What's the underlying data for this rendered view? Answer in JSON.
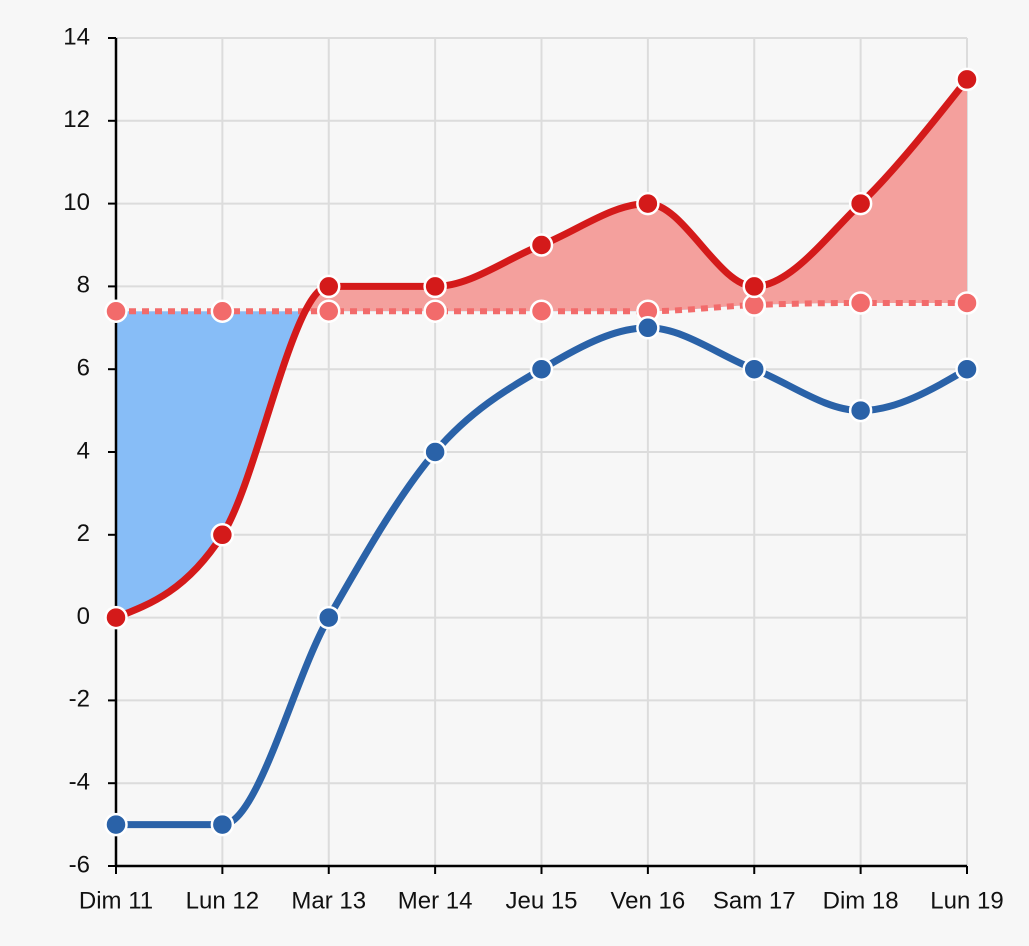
{
  "chart_data": {
    "type": "line",
    "categories": [
      "Dim 11",
      "Lun 12",
      "Mar 13",
      "Mer 14",
      "Jeu 15",
      "Ven 16",
      "Sam 17",
      "Dim 18",
      "Lun 19"
    ],
    "series": [
      {
        "color": "#2a62a8",
        "values": [
          -5,
          -5,
          0,
          4,
          6,
          7,
          6,
          5,
          6
        ]
      },
      {
        "color": "#f26b6b",
        "dashed": true,
        "values": [
          7.4,
          7.4,
          7.4,
          7.4,
          7.4,
          7.4,
          7.55,
          7.6,
          7.6
        ]
      },
      {
        "color": "#d41a1a",
        "values": [
          0,
          2,
          8,
          8,
          9,
          10,
          8,
          10,
          13
        ]
      }
    ],
    "area_fill": {
      "above": "#f4a09d",
      "below": "#87bdf7"
    },
    "ylim": [
      -6,
      14
    ],
    "yticks": [
      -6,
      -4,
      -2,
      0,
      2,
      4,
      6,
      8,
      10,
      12,
      14
    ],
    "grid": true
  }
}
